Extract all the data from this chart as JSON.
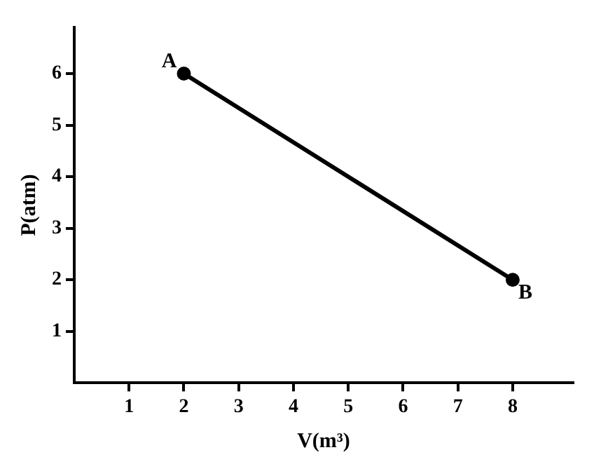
{
  "chart_data": {
    "type": "line",
    "xlabel": "V(m³)",
    "ylabel": "P(atm)",
    "x": [
      2,
      8
    ],
    "series": [
      {
        "color": "#000000",
        "values": [
          6,
          2
        ]
      }
    ],
    "xlim": [
      0,
      9.1
    ],
    "ylim": [
      0,
      6.9
    ],
    "xticks": [
      1,
      2,
      3,
      4,
      5,
      6,
      7,
      8
    ],
    "yticks": [
      1,
      2,
      3,
      4,
      5,
      6
    ],
    "marker": "circle",
    "line_style": "solid",
    "legend": false,
    "annotations": [
      {
        "text": "A",
        "x": 2,
        "y": 6
      },
      {
        "text": "B",
        "x": 8,
        "y": 2
      }
    ]
  }
}
